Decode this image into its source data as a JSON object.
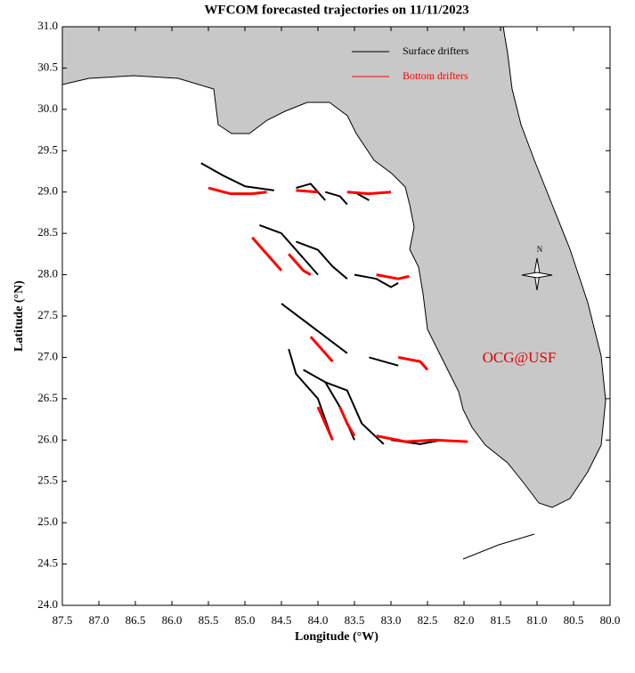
{
  "chart_data": {
    "type": "line",
    "title": "WFCOM forecasted trajectories on 11/11/2023",
    "x_label": "Longitude (°W)",
    "y_label": "Latitude (°N)",
    "annotation": "OCG@USF",
    "compass_label": "N",
    "legend": "upper right",
    "xlim": [
      87.5,
      80
    ],
    "ylim": [
      24,
      31
    ],
    "xticks": [
      87.5,
      {
        "value": 87,
        "label": "87.0"
      },
      86.5,
      {
        "value": 86,
        "label": "86.0"
      },
      85.5,
      {
        "value": 85,
        "label": "85.0"
      },
      84.5,
      {
        "value": 84,
        "label": "84.0"
      },
      83.5,
      {
        "value": 83,
        "label": "83.0"
      },
      82.5,
      {
        "value": 82,
        "label": "82.0"
      },
      81.5,
      {
        "value": 81,
        "label": "81.0"
      },
      80.5,
      {
        "value": 80,
        "label": "80.0"
      }
    ],
    "yticks": [
      {
        "value": 24,
        "label": "24.0"
      },
      24.5,
      {
        "value": 25,
        "label": "25.0"
      },
      25.5,
      {
        "value": 26,
        "label": "26.0"
      },
      26.5,
      {
        "value": 27,
        "label": "27.0"
      },
      27.5,
      {
        "value": 28,
        "label": "28.0"
      },
      28.5,
      {
        "value": 29,
        "label": "29.0"
      },
      29.5,
      {
        "value": 30,
        "label": "30.0"
      },
      30.5,
      {
        "value": 31,
        "label": "31.0"
      }
    ],
    "series": [
      {
        "name": "Surface drifters",
        "color": "#000000",
        "x": [
          85.6,
          85.3,
          85.0,
          84.6,
          null,
          84.3,
          84.1,
          84.0,
          83.9,
          null,
          83.9,
          83.7,
          83.6,
          null,
          83.5,
          83.3,
          null,
          84.8,
          84.5,
          84.3,
          84.0,
          null,
          84.3,
          84.0,
          83.8,
          83.6,
          null,
          83.5,
          83.2,
          83.0,
          82.9,
          null,
          84.5,
          84.2,
          83.9,
          83.6,
          null,
          83.3,
          83.1,
          82.9,
          null,
          84.4,
          84.3,
          84.0,
          83.8,
          null,
          84.2,
          83.9,
          83.7,
          83.5,
          null,
          83.9,
          83.6,
          83.4,
          83.1,
          null,
          83.0,
          82.6,
          82.3
        ],
        "values": [
          29.35,
          29.2,
          29.07,
          29.02,
          null,
          29.05,
          29.1,
          29.0,
          28.9,
          null,
          29.0,
          28.95,
          28.85,
          null,
          29.0,
          28.9,
          null,
          28.6,
          28.5,
          28.3,
          28.0,
          null,
          28.4,
          28.3,
          28.1,
          27.95,
          null,
          28.0,
          27.95,
          27.85,
          27.9,
          null,
          27.65,
          27.45,
          27.25,
          27.05,
          null,
          27.0,
          26.95,
          26.9,
          null,
          27.1,
          26.8,
          26.5,
          26.0,
          null,
          26.85,
          26.7,
          26.4,
          26.0,
          null,
          26.7,
          26.6,
          26.2,
          25.95,
          null,
          26.0,
          25.95,
          26.0
        ]
      },
      {
        "name": "Bottom drifters",
        "color": "#ff0000",
        "x": [
          85.5,
          85.2,
          84.9,
          84.7,
          null,
          84.3,
          84.0,
          null,
          83.6,
          83.3,
          83.0,
          null,
          84.9,
          84.7,
          84.5,
          null,
          84.4,
          84.2,
          84.1,
          null,
          83.2,
          82.9,
          82.75,
          null,
          84.1,
          83.9,
          83.8,
          null,
          82.9,
          82.6,
          82.5,
          null,
          84.0,
          83.9,
          83.8,
          null,
          83.7,
          83.6,
          83.5,
          null,
          83.2,
          82.8,
          82.4,
          81.95
        ],
        "values": [
          29.05,
          28.98,
          28.98,
          29.0,
          null,
          29.02,
          29.0,
          null,
          29.0,
          28.98,
          29.0,
          null,
          28.45,
          28.25,
          28.05,
          null,
          28.25,
          28.05,
          28.0,
          null,
          28.0,
          27.95,
          27.98,
          null,
          27.25,
          27.05,
          26.95,
          null,
          27.0,
          26.95,
          26.85,
          null,
          26.4,
          26.2,
          26.0,
          null,
          26.4,
          26.2,
          26.05,
          null,
          26.05,
          25.98,
          26.0,
          25.98
        ]
      }
    ]
  }
}
